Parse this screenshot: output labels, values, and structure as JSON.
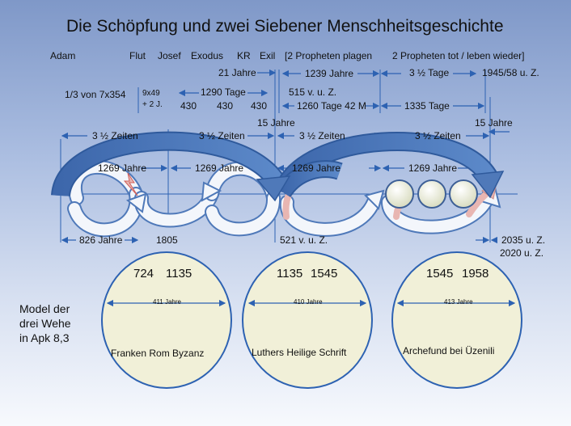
{
  "title": "Die Schöpfung und zwei Siebener Menschheitsgeschichte",
  "epochs": {
    "adam": "Adam",
    "flut": "Flut",
    "josef": "Josef",
    "exodus": "Exodus",
    "kr": "KR",
    "exil": "Exil",
    "propheten_plagen": "[2 Propheten plagen",
    "propheten_tot": "2 Propheten tot  /  leben wieder]"
  },
  "spans": {
    "jahre21": "21 Jahre",
    "jahre1239": "1239 Jahre",
    "tage35": "3 ½ Tage",
    "date1945": "1945/58 u. Z.",
    "tage1290": "1290 Tage",
    "vuz515": "515 v. u. Z.",
    "drittel": "1/3 von 7x354",
    "nine49a": "9x49",
    "nine49b": "+ 2 J.",
    "n430a": "430",
    "n430b": "430",
    "n430c": "430",
    "tage1260": "1260 Tage 42 M",
    "tage1335": "1335 Tage",
    "jahre15a": "15 Jahre",
    "jahre15b": "15 Jahre",
    "zeiten1": "3 ½ Zeiten",
    "zeiten2": "3 ½ Zeiten",
    "zeiten3": "3 ½ Zeiten",
    "zeiten4": "3 ½ Zeiten",
    "jahre1269a": "1269 Jahre",
    "jahre1269b": "1269 Jahre",
    "jahre1269c": "1269 Jahre",
    "jahre1269d": "1269 Jahre",
    "jahre826": "826 Jahre",
    "y1805": "1805",
    "vuz521": "521 v. u. Z.",
    "uz2035": "2035 u. Z.",
    "uz2020": "2020 u. Z."
  },
  "model_label": [
    "Model der",
    "drei Wehe",
    "in Apk 8,3"
  ],
  "woes": [
    {
      "year_a": "724",
      "year_b": "1135",
      "span": "411 Jahre",
      "label": "Franken Rom Byzanz"
    },
    {
      "year_a": "1135",
      "year_b": "1545",
      "span": "410 Jahre",
      "label": "Luthers Heilige Schrift"
    },
    {
      "year_a": "1545",
      "year_b": "1958",
      "span": "413 Jahre",
      "label": "Archefund bei Üzenili"
    }
  ],
  "colors": {
    "arrow_blue": "#4f79b9",
    "arrow_white": "#f3f6fb",
    "arrow_pink": "#e8b6b2",
    "circle_fill": "#f1f0d8",
    "line_blue": "#2d62b2"
  }
}
